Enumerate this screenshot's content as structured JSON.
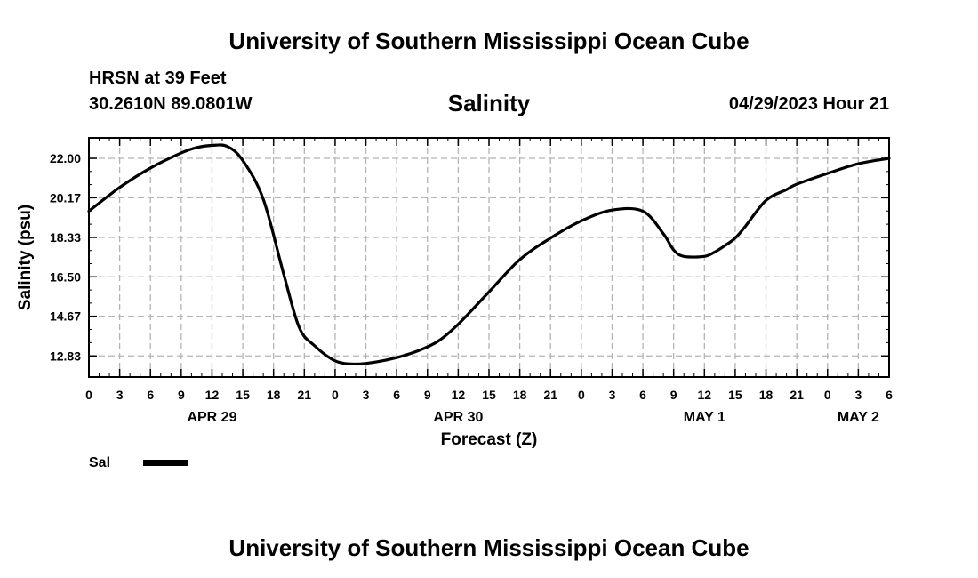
{
  "header": {
    "title": "University of Southern Mississippi Ocean Cube",
    "station": "HRSN at 39 Feet",
    "coords": "30.2610N  89.0801W",
    "run_time": "04/29/2023 Hour 21"
  },
  "footer": {
    "title": "University of Southern Mississippi Ocean Cube"
  },
  "colors": {
    "line": "#000000",
    "grid": "#b4b4b4",
    "frame": "#000000"
  },
  "chart_data": {
    "type": "line",
    "title": "Salinity",
    "xlabel": "Forecast (Z)",
    "ylabel": "Salinity (psu)",
    "xlim": [
      0,
      78
    ],
    "ylim": [
      11.85,
      22.95
    ],
    "grid": true,
    "legend_position": "bottom-left",
    "x_ticks": [
      0,
      3,
      6,
      9,
      12,
      15,
      18,
      21,
      24,
      27,
      30,
      33,
      36,
      39,
      42,
      45,
      48,
      51,
      54,
      57,
      60,
      63,
      66,
      69,
      72,
      75,
      78
    ],
    "x_tick_labels": [
      "0",
      "3",
      "6",
      "9",
      "12",
      "15",
      "18",
      "21",
      "0",
      "3",
      "6",
      "9",
      "12",
      "15",
      "18",
      "21",
      "0",
      "3",
      "6",
      "9",
      "12",
      "15",
      "18",
      "21",
      "0",
      "3",
      "6"
    ],
    "y_ticks": [
      12.83,
      14.67,
      16.5,
      18.33,
      20.17,
      22.0
    ],
    "y_tick_labels": [
      "12.83",
      "14.67",
      "16.50",
      "18.33",
      "20.17",
      "22.00"
    ],
    "date_labels": [
      {
        "x": 12,
        "label": "APR 29"
      },
      {
        "x": 36,
        "label": "APR 30"
      },
      {
        "x": 60,
        "label": "MAY 1"
      },
      {
        "x": 75,
        "label": "MAY 2"
      }
    ],
    "series": [
      {
        "name": "Sal",
        "x": [
          0,
          3,
          6,
          9,
          10.5,
          12,
          13.5,
          15,
          17,
          19,
          20.5,
          22,
          24,
          26,
          28,
          30,
          32,
          34,
          36,
          39,
          42,
          45,
          48,
          51,
          54,
          56,
          57,
          58,
          60,
          61,
          62,
          63,
          64,
          66,
          68,
          69,
          72,
          75,
          78
        ],
        "values": [
          19.55,
          20.65,
          21.55,
          22.25,
          22.5,
          22.6,
          22.55,
          21.9,
          20.1,
          16.6,
          14.15,
          13.3,
          12.6,
          12.45,
          12.55,
          12.75,
          13.05,
          13.5,
          14.3,
          15.8,
          17.3,
          18.3,
          19.1,
          19.6,
          19.55,
          18.5,
          17.75,
          17.45,
          17.45,
          17.65,
          17.95,
          18.3,
          18.85,
          20.05,
          20.55,
          20.8,
          21.3,
          21.75,
          22.0
        ]
      }
    ]
  }
}
